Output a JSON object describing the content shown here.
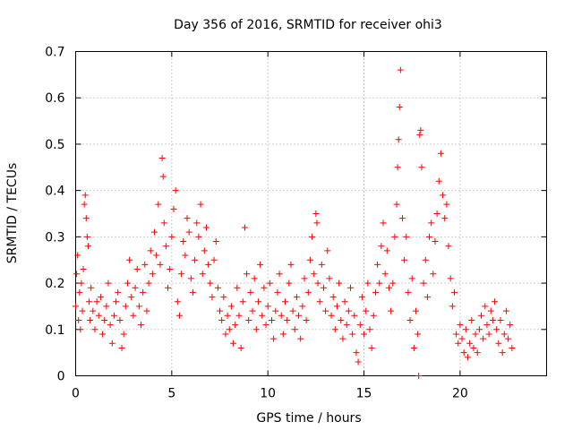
{
  "chart_data": {
    "type": "scatter",
    "title": "Day 356 of 2016, SRMTID for receiver ohi3",
    "xlabel": "GPS time / hours",
    "ylabel": "SRMTID / TECUs",
    "xlim": [
      0,
      24.5
    ],
    "ylim": [
      0,
      0.7
    ],
    "xticks": [
      0,
      5,
      10,
      15,
      20
    ],
    "yticks": [
      0,
      0.1,
      0.2,
      0.3,
      0.4,
      0.5,
      0.6,
      0.7
    ],
    "xtick_labels": [
      "0",
      "5",
      "10",
      "15",
      "20"
    ],
    "ytick_labels": [
      "0",
      "0.1",
      "0.2",
      "0.3",
      "0.4",
      "0.5",
      "0.6",
      "0.7"
    ],
    "grid": true,
    "marker": "+",
    "color": "#ff0000",
    "series": [
      {
        "name": "SRMTID",
        "points": [
          [
            0.0,
            0.15
          ],
          [
            0.05,
            0.22
          ],
          [
            0.1,
            0.26
          ],
          [
            0.15,
            0.12
          ],
          [
            0.2,
            0.18
          ],
          [
            0.25,
            0.1
          ],
          [
            0.3,
            0.2
          ],
          [
            0.35,
            0.14
          ],
          [
            0.4,
            0.23
          ],
          [
            0.45,
            0.37
          ],
          [
            0.5,
            0.39
          ],
          [
            0.55,
            0.34
          ],
          [
            0.6,
            0.3
          ],
          [
            0.65,
            0.28
          ],
          [
            0.7,
            0.16
          ],
          [
            0.75,
            0.12
          ],
          [
            0.8,
            0.19
          ],
          [
            0.9,
            0.14
          ],
          [
            1.0,
            0.1
          ],
          [
            1.1,
            0.16
          ],
          [
            1.2,
            0.13
          ],
          [
            1.3,
            0.17
          ],
          [
            1.4,
            0.09
          ],
          [
            1.5,
            0.12
          ],
          [
            1.6,
            0.15
          ],
          [
            1.7,
            0.2
          ],
          [
            1.8,
            0.11
          ],
          [
            1.9,
            0.07
          ],
          [
            2.0,
            0.13
          ],
          [
            2.1,
            0.16
          ],
          [
            2.2,
            0.18
          ],
          [
            2.3,
            0.12
          ],
          [
            2.4,
            0.06
          ],
          [
            2.5,
            0.09
          ],
          [
            2.6,
            0.15
          ],
          [
            2.7,
            0.2
          ],
          [
            2.8,
            0.25
          ],
          [
            2.9,
            0.17
          ],
          [
            3.0,
            0.13
          ],
          [
            3.1,
            0.19
          ],
          [
            3.2,
            0.23
          ],
          [
            3.3,
            0.15
          ],
          [
            3.4,
            0.11
          ],
          [
            3.5,
            0.18
          ],
          [
            3.6,
            0.24
          ],
          [
            3.7,
            0.14
          ],
          [
            3.8,
            0.2
          ],
          [
            3.9,
            0.27
          ],
          [
            4.0,
            0.22
          ],
          [
            4.1,
            0.31
          ],
          [
            4.2,
            0.26
          ],
          [
            4.3,
            0.37
          ],
          [
            4.4,
            0.24
          ],
          [
            4.5,
            0.47
          ],
          [
            4.55,
            0.43
          ],
          [
            4.6,
            0.33
          ],
          [
            4.7,
            0.28
          ],
          [
            4.8,
            0.19
          ],
          [
            4.9,
            0.23
          ],
          [
            5.0,
            0.3
          ],
          [
            5.1,
            0.36
          ],
          [
            5.2,
            0.4
          ],
          [
            5.3,
            0.16
          ],
          [
            5.4,
            0.13
          ],
          [
            5.5,
            0.22
          ],
          [
            5.6,
            0.29
          ],
          [
            5.7,
            0.26
          ],
          [
            5.8,
            0.34
          ],
          [
            5.9,
            0.31
          ],
          [
            6.0,
            0.21
          ],
          [
            6.1,
            0.18
          ],
          [
            6.2,
            0.25
          ],
          [
            6.3,
            0.33
          ],
          [
            6.4,
            0.3
          ],
          [
            6.5,
            0.37
          ],
          [
            6.6,
            0.22
          ],
          [
            6.7,
            0.27
          ],
          [
            6.8,
            0.32
          ],
          [
            6.9,
            0.24
          ],
          [
            7.0,
            0.2
          ],
          [
            7.1,
            0.17
          ],
          [
            7.2,
            0.25
          ],
          [
            7.3,
            0.29
          ],
          [
            7.4,
            0.19
          ],
          [
            7.5,
            0.14
          ],
          [
            7.6,
            0.12
          ],
          [
            7.7,
            0.17
          ],
          [
            7.8,
            0.09
          ],
          [
            7.9,
            0.13
          ],
          [
            8.0,
            0.1
          ],
          [
            8.1,
            0.15
          ],
          [
            8.2,
            0.07
          ],
          [
            8.3,
            0.11
          ],
          [
            8.4,
            0.19
          ],
          [
            8.5,
            0.13
          ],
          [
            8.6,
            0.06
          ],
          [
            8.7,
            0.16
          ],
          [
            8.8,
            0.32
          ],
          [
            8.9,
            0.22
          ],
          [
            9.0,
            0.12
          ],
          [
            9.1,
            0.18
          ],
          [
            9.2,
            0.14
          ],
          [
            9.3,
            0.21
          ],
          [
            9.4,
            0.1
          ],
          [
            9.5,
            0.16
          ],
          [
            9.6,
            0.24
          ],
          [
            9.7,
            0.13
          ],
          [
            9.8,
            0.19
          ],
          [
            9.9,
            0.11
          ],
          [
            10.0,
            0.15
          ],
          [
            10.1,
            0.2
          ],
          [
            10.2,
            0.12
          ],
          [
            10.3,
            0.08
          ],
          [
            10.4,
            0.14
          ],
          [
            10.5,
            0.18
          ],
          [
            10.6,
            0.22
          ],
          [
            10.7,
            0.13
          ],
          [
            10.8,
            0.09
          ],
          [
            10.9,
            0.16
          ],
          [
            11.0,
            0.12
          ],
          [
            11.1,
            0.2
          ],
          [
            11.2,
            0.24
          ],
          [
            11.3,
            0.14
          ],
          [
            11.4,
            0.1
          ],
          [
            11.5,
            0.17
          ],
          [
            11.6,
            0.13
          ],
          [
            11.7,
            0.08
          ],
          [
            11.8,
            0.15
          ],
          [
            11.9,
            0.21
          ],
          [
            12.0,
            0.12
          ],
          [
            12.1,
            0.18
          ],
          [
            12.2,
            0.25
          ],
          [
            12.3,
            0.3
          ],
          [
            12.4,
            0.22
          ],
          [
            12.5,
            0.35
          ],
          [
            12.55,
            0.33
          ],
          [
            12.6,
            0.2
          ],
          [
            12.7,
            0.16
          ],
          [
            12.8,
            0.24
          ],
          [
            12.9,
            0.19
          ],
          [
            13.0,
            0.14
          ],
          [
            13.1,
            0.27
          ],
          [
            13.2,
            0.21
          ],
          [
            13.3,
            0.13
          ],
          [
            13.4,
            0.17
          ],
          [
            13.5,
            0.1
          ],
          [
            13.6,
            0.15
          ],
          [
            13.7,
            0.2
          ],
          [
            13.8,
            0.12
          ],
          [
            13.9,
            0.08
          ],
          [
            14.0,
            0.16
          ],
          [
            14.1,
            0.11
          ],
          [
            14.2,
            0.14
          ],
          [
            14.3,
            0.19
          ],
          [
            14.4,
            0.09
          ],
          [
            14.5,
            0.13
          ],
          [
            14.6,
            0.05
          ],
          [
            14.7,
            0.03
          ],
          [
            14.8,
            0.11
          ],
          [
            14.9,
            0.17
          ],
          [
            15.0,
            0.09
          ],
          [
            15.1,
            0.14
          ],
          [
            15.2,
            0.2
          ],
          [
            15.3,
            0.1
          ],
          [
            15.4,
            0.06
          ],
          [
            15.5,
            0.13
          ],
          [
            15.6,
            0.18
          ],
          [
            15.7,
            0.24
          ],
          [
            15.8,
            0.2
          ],
          [
            15.9,
            0.28
          ],
          [
            16.0,
            0.33
          ],
          [
            16.1,
            0.22
          ],
          [
            16.2,
            0.27
          ],
          [
            16.3,
            0.19
          ],
          [
            16.4,
            0.14
          ],
          [
            16.5,
            0.2
          ],
          [
            16.6,
            0.3
          ],
          [
            16.7,
            0.37
          ],
          [
            16.75,
            0.45
          ],
          [
            16.8,
            0.51
          ],
          [
            16.85,
            0.58
          ],
          [
            16.9,
            0.66
          ],
          [
            17.0,
            0.34
          ],
          [
            17.1,
            0.25
          ],
          [
            17.2,
            0.3
          ],
          [
            17.3,
            0.18
          ],
          [
            17.4,
            0.12
          ],
          [
            17.5,
            0.21
          ],
          [
            17.6,
            0.06
          ],
          [
            17.7,
            0.14
          ],
          [
            17.8,
            0.09
          ],
          [
            17.85,
            0.0
          ],
          [
            17.9,
            0.52
          ],
          [
            17.95,
            0.53
          ],
          [
            18.0,
            0.45
          ],
          [
            18.1,
            0.2
          ],
          [
            18.2,
            0.25
          ],
          [
            18.3,
            0.17
          ],
          [
            18.4,
            0.3
          ],
          [
            18.5,
            0.33
          ],
          [
            18.6,
            0.22
          ],
          [
            18.7,
            0.29
          ],
          [
            18.8,
            0.35
          ],
          [
            18.9,
            0.42
          ],
          [
            19.0,
            0.48
          ],
          [
            19.1,
            0.39
          ],
          [
            19.2,
            0.34
          ],
          [
            19.3,
            0.37
          ],
          [
            19.4,
            0.28
          ],
          [
            19.5,
            0.21
          ],
          [
            19.6,
            0.15
          ],
          [
            19.7,
            0.18
          ],
          [
            19.8,
            0.09
          ],
          [
            19.9,
            0.07
          ],
          [
            20.0,
            0.11
          ],
          [
            20.1,
            0.08
          ],
          [
            20.2,
            0.05
          ],
          [
            20.3,
            0.1
          ],
          [
            20.4,
            0.04
          ],
          [
            20.5,
            0.07
          ],
          [
            20.6,
            0.12
          ],
          [
            20.7,
            0.06
          ],
          [
            20.8,
            0.09
          ],
          [
            20.9,
            0.05
          ],
          [
            21.0,
            0.1
          ],
          [
            21.1,
            0.13
          ],
          [
            21.2,
            0.08
          ],
          [
            21.3,
            0.15
          ],
          [
            21.4,
            0.11
          ],
          [
            21.5,
            0.09
          ],
          [
            21.6,
            0.14
          ],
          [
            21.7,
            0.12
          ],
          [
            21.8,
            0.16
          ],
          [
            21.9,
            0.1
          ],
          [
            22.0,
            0.07
          ],
          [
            22.1,
            0.12
          ],
          [
            22.2,
            0.05
          ],
          [
            22.3,
            0.09
          ],
          [
            22.4,
            0.14
          ],
          [
            22.5,
            0.08
          ],
          [
            22.6,
            0.11
          ],
          [
            22.7,
            0.06
          ]
        ]
      }
    ]
  }
}
